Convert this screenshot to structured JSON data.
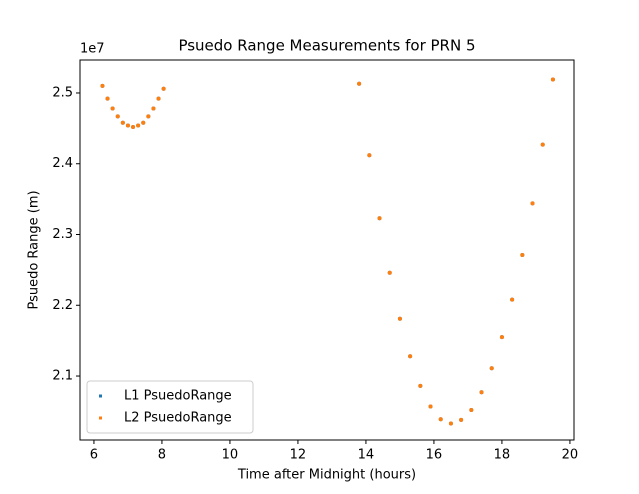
{
  "chart_data": {
    "type": "scatter",
    "title": "Psuedo Range Measurements for PRN 5",
    "x_label": "Time after Midnight (hours)",
    "y_label": "Psuedo Range (m)",
    "y_offset_text": "1e7",
    "x": [
      6.25,
      6.4,
      6.55,
      6.7,
      6.85,
      7.0,
      7.15,
      7.3,
      7.45,
      7.6,
      7.75,
      7.9,
      8.05,
      13.8,
      14.1,
      14.4,
      14.7,
      15.0,
      15.3,
      15.6,
      15.9,
      16.2,
      16.5,
      16.8,
      17.1,
      17.4,
      17.7,
      18.0,
      18.3,
      18.6,
      18.9,
      19.2,
      19.5
    ],
    "series": [
      {
        "name": "L1 PsuedoRange",
        "color": "#1f77b4",
        "values": [
          2.51,
          2.492,
          2.478,
          2.467,
          2.458,
          2.454,
          2.452,
          2.454,
          2.458,
          2.467,
          2.478,
          2.492,
          2.506,
          2.513,
          2.412,
          2.323,
          2.246,
          2.181,
          2.128,
          2.086,
          2.057,
          2.039,
          2.033,
          2.038,
          2.052,
          2.077,
          2.111,
          2.155,
          2.208,
          2.271,
          2.344,
          2.427,
          2.519
        ]
      },
      {
        "name": "L2 PsuedoRange",
        "color": "#ff7f0e",
        "values": [
          2.51,
          2.492,
          2.478,
          2.467,
          2.458,
          2.454,
          2.452,
          2.454,
          2.458,
          2.467,
          2.478,
          2.492,
          2.506,
          2.513,
          2.412,
          2.323,
          2.246,
          2.181,
          2.128,
          2.086,
          2.057,
          2.039,
          2.033,
          2.038,
          2.052,
          2.077,
          2.111,
          2.155,
          2.208,
          2.271,
          2.344,
          2.427,
          2.519
        ]
      }
    ],
    "xlim": [
      5.59,
      20.12
    ],
    "xticks": [
      6,
      8,
      10,
      12,
      14,
      16,
      18,
      20
    ],
    "ylim": [
      2.0096,
      2.5466
    ],
    "yticks": [
      2.1,
      2.2,
      2.3,
      2.4,
      2.5
    ],
    "grid": false,
    "legend": "lower left"
  }
}
